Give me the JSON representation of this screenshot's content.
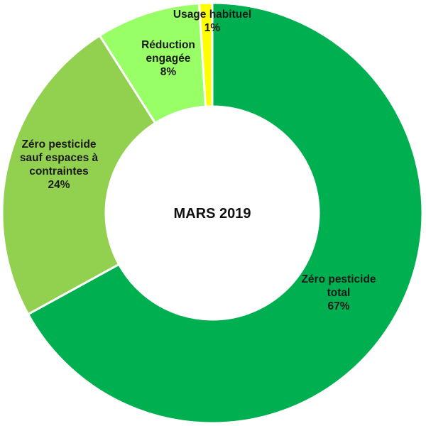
{
  "chart_data": {
    "type": "pie",
    "variant": "donut",
    "center_label": "MARS 2019",
    "slices": [
      {
        "label_lines": [
          "Zéro pesticide",
          "total"
        ],
        "value": 67,
        "value_label": "67%",
        "color": "#00b050"
      },
      {
        "label_lines": [
          "Zéro pesticide",
          "sauf espaces à",
          "contraintes"
        ],
        "value": 24,
        "value_label": "24%",
        "color": "#92d050"
      },
      {
        "label_lines": [
          "Réduction",
          "engagée"
        ],
        "value": 8,
        "value_label": "8%",
        "color": "#99ff66"
      },
      {
        "label_lines": [
          "Usage habituel"
        ],
        "value": 1,
        "value_label": "1%",
        "color": "#ffff00"
      }
    ],
    "slice_border_color": "#ffffff",
    "legend": "none"
  }
}
